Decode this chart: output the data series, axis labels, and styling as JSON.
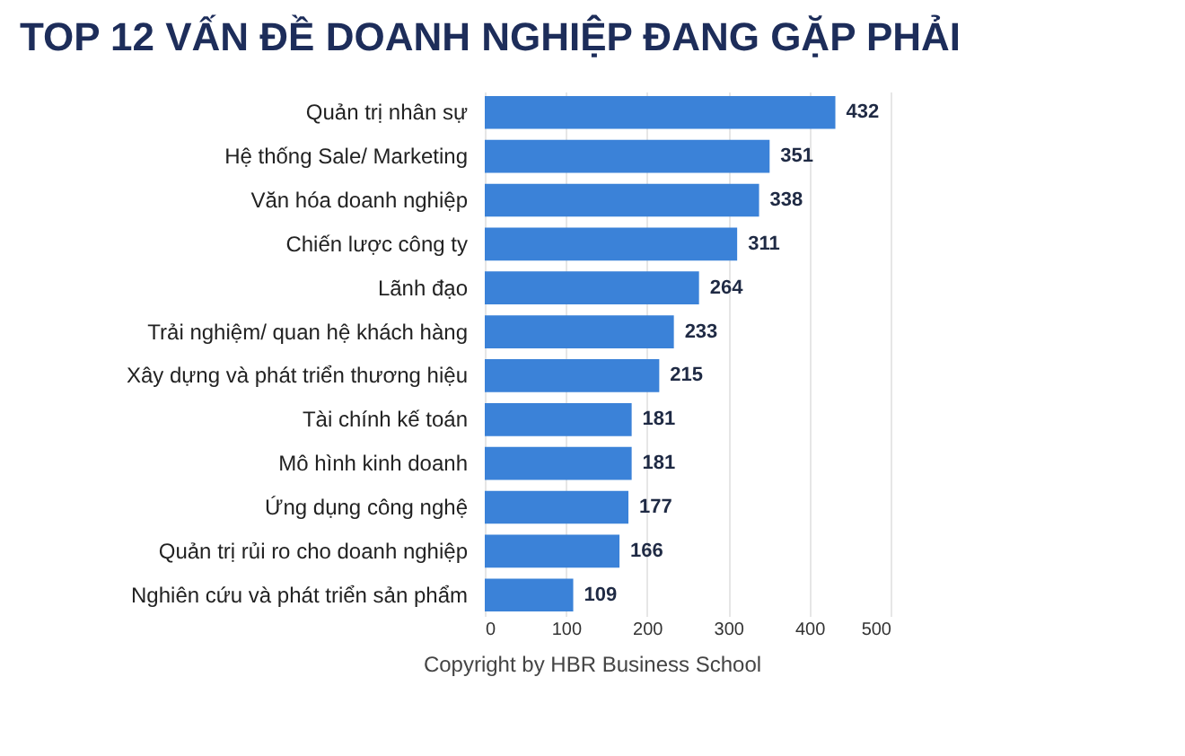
{
  "chart_data": {
    "type": "bar",
    "orientation": "horizontal",
    "title": "TOP 12 VẤN ĐỀ DOANH NGHIỆP ĐANG GẶP PHẢI",
    "categories": [
      "Quản trị nhân sự",
      "Hệ thống Sale/ Marketing",
      "Văn hóa doanh nghiệp",
      "Chiến lược công ty",
      "Lãnh đạo",
      "Trải nghiệm/ quan hệ khách hàng",
      "Xây dựng và phát triển thương hiệu",
      "Tài chính kế toán",
      "Mô hình kinh doanh",
      "Ứng dụng công nghệ",
      "Quản trị rủi ro cho doanh nghiệp",
      "Nghiên cứu và phát triển sản phẩm"
    ],
    "values": [
      432,
      351,
      338,
      311,
      264,
      233,
      215,
      181,
      181,
      177,
      166,
      109
    ],
    "color": "#3b82d8",
    "xlim": [
      0,
      500
    ],
    "xticks": [
      0,
      100,
      200,
      300,
      400,
      500
    ],
    "grid": "x",
    "data_labels": true,
    "annotations": [
      "Copyright by HBR Business School"
    ]
  }
}
